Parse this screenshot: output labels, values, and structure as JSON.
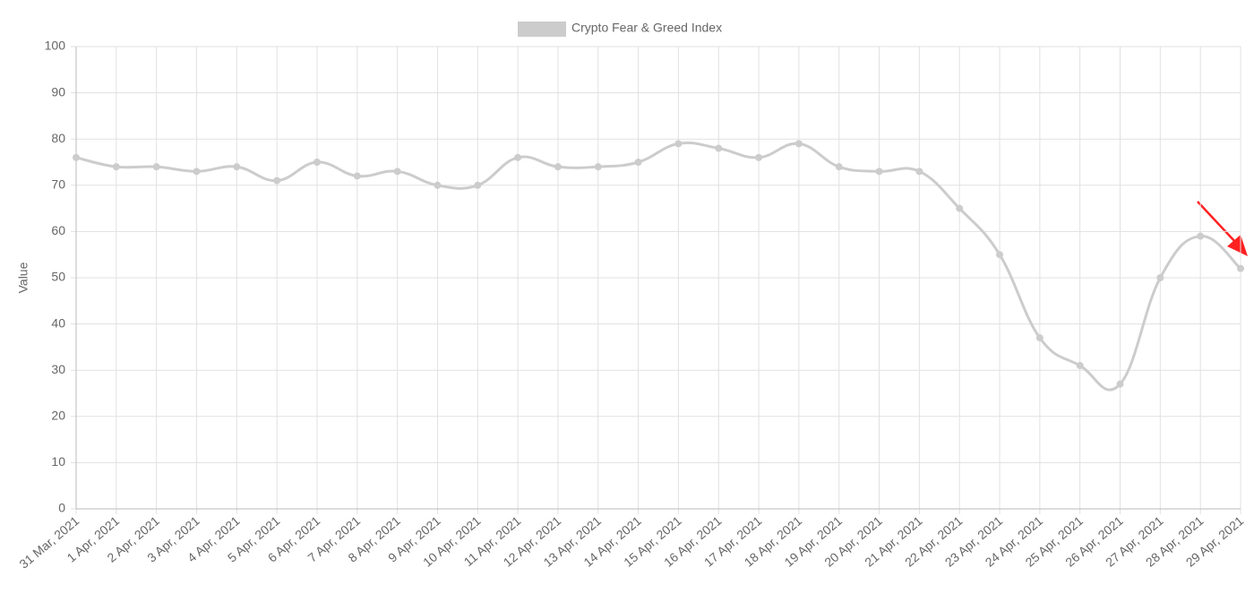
{
  "chart_data": {
    "type": "line",
    "y_axis_label": "Value",
    "categories": [
      "31 Mar, 2021",
      "1 Apr, 2021",
      "2 Apr, 2021",
      "3 Apr, 2021",
      "4 Apr, 2021",
      "5 Apr, 2021",
      "6 Apr, 2021",
      "7 Apr, 2021",
      "8 Apr, 2021",
      "9 Apr, 2021",
      "10 Apr, 2021",
      "11 Apr, 2021",
      "12 Apr, 2021",
      "13 Apr, 2021",
      "14 Apr, 2021",
      "15 Apr, 2021",
      "16 Apr, 2021",
      "17 Apr, 2021",
      "18 Apr, 2021",
      "19 Apr, 2021",
      "20 Apr, 2021",
      "21 Apr, 2021",
      "22 Apr, 2021",
      "23 Apr, 2021",
      "24 Apr, 2021",
      "25 Apr, 2021",
      "26 Apr, 2021",
      "27 Apr, 2021",
      "28 Apr, 2021",
      "29 Apr, 2021"
    ],
    "series": [
      {
        "name": "Crypto Fear & Greed Index",
        "color": "#cccccc",
        "values": [
          76,
          74,
          74,
          73,
          74,
          71,
          75,
          72,
          73,
          70,
          70,
          76,
          74,
          74,
          75,
          79,
          78,
          76,
          79,
          74,
          73,
          73,
          65,
          55,
          37,
          31,
          27,
          50,
          59,
          52
        ]
      }
    ],
    "ylim": [
      0,
      100
    ],
    "yticks": [
      0,
      10,
      20,
      30,
      40,
      50,
      60,
      70,
      80,
      90,
      100
    ],
    "grid": true,
    "legend": "top"
  }
}
